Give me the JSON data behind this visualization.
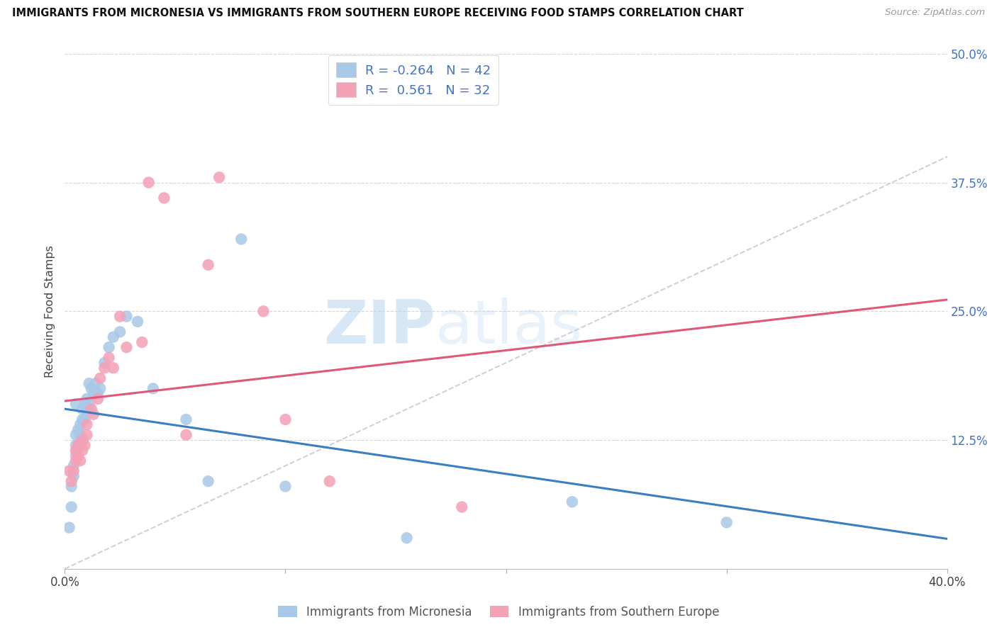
{
  "title": "IMMIGRANTS FROM MICRONESIA VS IMMIGRANTS FROM SOUTHERN EUROPE RECEIVING FOOD STAMPS CORRELATION CHART",
  "source": "Source: ZipAtlas.com",
  "ylabel": "Receiving Food Stamps",
  "legend_micronesia": "Immigrants from Micronesia",
  "legend_southern": "Immigrants from Southern Europe",
  "xlim": [
    0.0,
    0.4
  ],
  "ylim": [
    0.0,
    0.5
  ],
  "yticks": [
    0.0,
    0.125,
    0.25,
    0.375,
    0.5
  ],
  "xticks": [
    0.0,
    0.1,
    0.2,
    0.3,
    0.4
  ],
  "R_micronesia": -0.264,
  "N_micronesia": 42,
  "R_southern": 0.561,
  "N_southern": 32,
  "color_micronesia": "#a8c8e8",
  "color_southern": "#f4a0b5",
  "line_color_micronesia": "#3a7fc1",
  "line_color_southern": "#e05878",
  "watermark_zip": "ZIP",
  "watermark_atlas": "atlas",
  "mic_x": [
    0.002,
    0.003,
    0.003,
    0.004,
    0.004,
    0.005,
    0.005,
    0.005,
    0.005,
    0.006,
    0.006,
    0.006,
    0.007,
    0.007,
    0.007,
    0.008,
    0.008,
    0.009,
    0.009,
    0.01,
    0.01,
    0.011,
    0.011,
    0.012,
    0.013,
    0.014,
    0.015,
    0.016,
    0.018,
    0.02,
    0.022,
    0.025,
    0.028,
    0.033,
    0.04,
    0.055,
    0.065,
    0.08,
    0.1,
    0.155,
    0.23,
    0.3
  ],
  "mic_y": [
    0.04,
    0.06,
    0.08,
    0.09,
    0.1,
    0.11,
    0.12,
    0.13,
    0.16,
    0.11,
    0.12,
    0.135,
    0.12,
    0.13,
    0.14,
    0.145,
    0.155,
    0.145,
    0.16,
    0.155,
    0.165,
    0.16,
    0.18,
    0.175,
    0.17,
    0.18,
    0.17,
    0.175,
    0.2,
    0.215,
    0.225,
    0.23,
    0.245,
    0.24,
    0.175,
    0.145,
    0.085,
    0.32,
    0.08,
    0.03,
    0.065,
    0.045
  ],
  "sou_x": [
    0.002,
    0.003,
    0.004,
    0.005,
    0.005,
    0.006,
    0.006,
    0.007,
    0.008,
    0.008,
    0.009,
    0.01,
    0.01,
    0.012,
    0.013,
    0.015,
    0.016,
    0.018,
    0.02,
    0.022,
    0.025,
    0.028,
    0.035,
    0.038,
    0.045,
    0.055,
    0.065,
    0.07,
    0.09,
    0.1,
    0.12,
    0.18
  ],
  "sou_y": [
    0.095,
    0.085,
    0.095,
    0.105,
    0.115,
    0.11,
    0.12,
    0.105,
    0.115,
    0.125,
    0.12,
    0.13,
    0.14,
    0.155,
    0.15,
    0.165,
    0.185,
    0.195,
    0.205,
    0.195,
    0.245,
    0.215,
    0.22,
    0.375,
    0.36,
    0.13,
    0.295,
    0.38,
    0.25,
    0.145,
    0.085,
    0.06
  ]
}
